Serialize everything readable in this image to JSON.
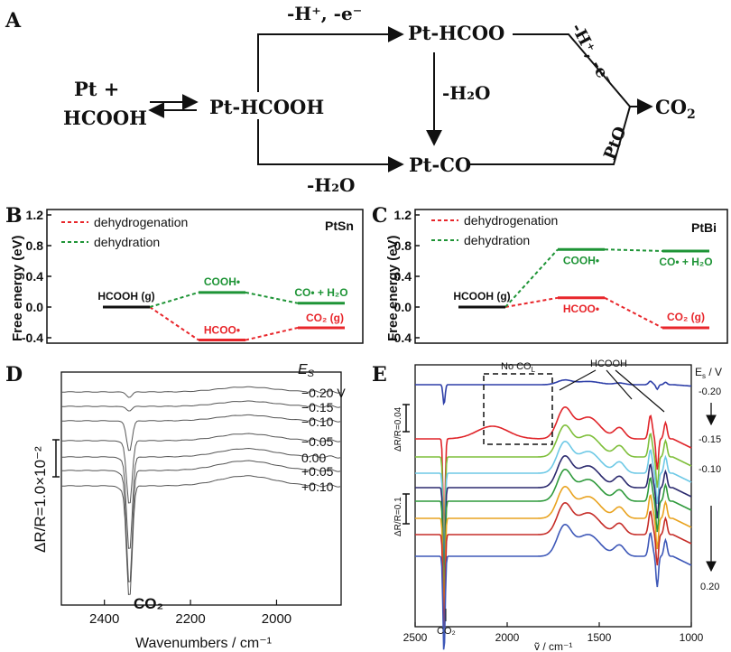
{
  "panel_a": {
    "label": "A",
    "reactant_line1": "Pt +",
    "reactant_line2": "HCOOH",
    "adsorbed": "Pt-HCOOH",
    "formate": "Pt-HCOO",
    "co_ads": "Pt-CO",
    "product": "CO",
    "product_sub": "2",
    "top_arrow_label": "-H⁺, -e⁻",
    "diag_arrow_label": "-H⁺, -e⁻",
    "middle_arrow_label": "-H₂O",
    "bottom_arrow_label": "-H₂O",
    "pto_label": "PtO"
  },
  "chart_data": [
    {
      "panel": "B",
      "type": "line",
      "catalyst_label": "PtSn",
      "ylabel": "Free energy (eV)",
      "ylim": [
        -0.4,
        1.2
      ],
      "yticks": [
        "1.2",
        "0.8",
        "0.4",
        "0.0",
        "-0.4"
      ],
      "series": [
        {
          "name": "dehydrogenation",
          "color": "#e8262b",
          "states": [
            {
              "label": "HCOOH (g)",
              "value": 0.0
            },
            {
              "label": "HCOO•",
              "value": -0.43
            },
            {
              "label": "CO₂ (g)",
              "value": -0.27
            }
          ]
        },
        {
          "name": "dehydration",
          "color": "#1e9436",
          "states": [
            {
              "label": "HCOOH (g)",
              "value": 0.0
            },
            {
              "label": "COOH•",
              "value": 0.19
            },
            {
              "label": "CO• + H₂O",
              "value": 0.05
            }
          ]
        }
      ],
      "legend": "top-left"
    },
    {
      "panel": "C",
      "type": "line",
      "catalyst_label": "PtBi",
      "ylabel": "Free energy (eV)",
      "ylim": [
        -0.4,
        1.2
      ],
      "yticks": [
        "1.2",
        "0.8",
        "0.4",
        "0.0",
        "-0.4"
      ],
      "series": [
        {
          "name": "dehydrogenation",
          "color": "#e8262b",
          "states": [
            {
              "label": "HCOOH (g)",
              "value": 0.0
            },
            {
              "label": "HCOO•",
              "value": 0.12
            },
            {
              "label": "CO₂ (g)",
              "value": -0.27
            }
          ]
        },
        {
          "name": "dehydration",
          "color": "#1e9436",
          "states": [
            {
              "label": "HCOOH (g)",
              "value": 0.0
            },
            {
              "label": "COOH•",
              "value": 0.75
            },
            {
              "label": "CO• + H₂O",
              "value": 0.73
            }
          ]
        }
      ],
      "legend": "top-left"
    },
    {
      "panel": "D",
      "type": "line",
      "xlabel": "Wavenumbers / cm⁻¹",
      "xlim": [
        2500,
        1850
      ],
      "xticks": [
        2400,
        2200,
        2000
      ],
      "scale_label": "ΔR/R=1.0×10⁻²",
      "header": "E",
      "header_sub": "S",
      "band_label": "CO₂",
      "potentials": [
        "−0.20 V",
        "−0.15",
        "−0.10",
        "−0.05",
        "0.00",
        "+0.05",
        "+0.10"
      ],
      "co2_dip_depth": [
        0.08,
        0.12,
        0.22,
        0.45,
        0.7,
        0.95,
        1.0
      ],
      "color": "#555555"
    },
    {
      "panel": "E",
      "type": "line",
      "xlabel": "ṽ / cm⁻¹",
      "xlim": [
        2500,
        1000
      ],
      "xticks": [
        2500,
        2000,
        1500,
        1000
      ],
      "scale_label_top": "ΔR/R=0.04",
      "scale_label_bottom": "ΔR/R=0.1",
      "annotation_box": "No CO",
      "annotation_box_sub": "L",
      "annotation_hcooh": "HCOOH",
      "band_label": "CO₂",
      "potential_header": "E",
      "potential_header_sub": "s",
      "potential_header_unit": " / V",
      "potentials": [
        "-0.20",
        "-0.15",
        "-0.10",
        "0.20"
      ],
      "series_colors": [
        "#2e3fa8",
        "#e0252a",
        "#7fbf3b",
        "#6ec9e6",
        "#2b2a6e",
        "#2f9a3c",
        "#e9a320",
        "#c62d28",
        "#3e58b8"
      ]
    }
  ]
}
